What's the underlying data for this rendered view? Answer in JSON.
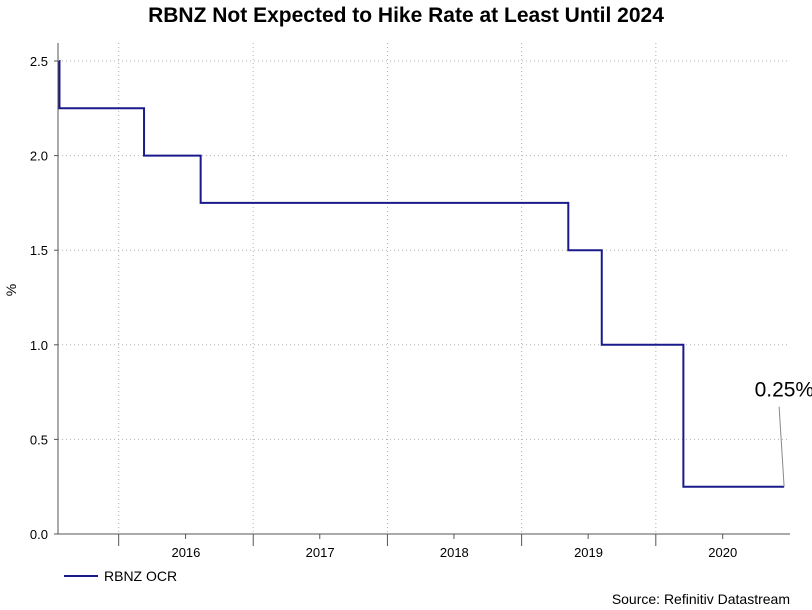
{
  "chart_data": {
    "type": "line",
    "title": "RBNZ Not Expected to Hike Rate at Least Until 2024",
    "ylabel": "%",
    "xlabel": "",
    "ylim": [
      0,
      2.5
    ],
    "xlim": [
      "2015-07-20",
      "2020-12-31"
    ],
    "yticks": [
      "0.0",
      "0.5",
      "1.0",
      "1.5",
      "2.0",
      "2.5"
    ],
    "xticks": [
      "2016",
      "2017",
      "2018",
      "2019",
      "2020"
    ],
    "grid": true,
    "legend_position": "bottom-left",
    "series": [
      {
        "name": "RBNZ OCR",
        "color": "#1a1a8c",
        "step": true,
        "points": [
          {
            "x": "2015-07-23",
            "y": 2.5
          },
          {
            "x": "2015-07-24",
            "y": 2.25
          },
          {
            "x": "2016-03-10",
            "y": 2.0
          },
          {
            "x": "2016-08-11",
            "y": 1.75
          },
          {
            "x": "2019-05-08",
            "y": 1.5
          },
          {
            "x": "2019-08-07",
            "y": 1.0
          },
          {
            "x": "2020-03-16",
            "y": 0.25
          },
          {
            "x": "2020-12-15",
            "y": 0.25
          }
        ]
      }
    ],
    "annotations": [
      {
        "text": "0.25%",
        "x": "2020-12-15",
        "y": 0.25
      }
    ],
    "source": "Source: Refinitiv Datastream"
  }
}
